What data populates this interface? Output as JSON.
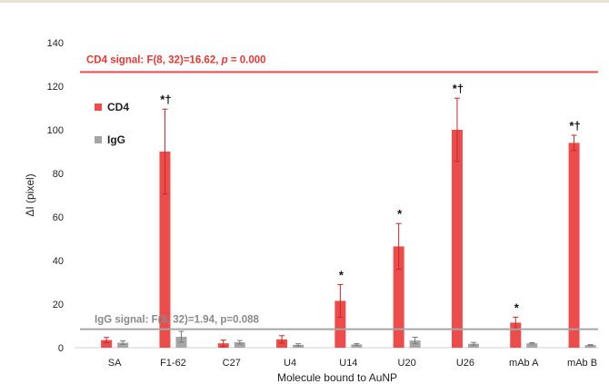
{
  "chart_data": {
    "type": "bar",
    "xlabel": "Molecule bound to AuNP",
    "ylabel": "ΔI (pixel)",
    "ylim": [
      0,
      140
    ],
    "yticks": [
      0,
      20,
      40,
      60,
      80,
      100,
      120,
      140
    ],
    "grid": false,
    "legend_position": "top-left",
    "categories": [
      "SA",
      "F1-62",
      "C27",
      "U4",
      "U14",
      "U20",
      "U26",
      "mAb A",
      "mAb B"
    ],
    "series": [
      {
        "name": "CD4",
        "color": "#ee4b4b",
        "values": [
          3.5,
          90,
          2,
          3.8,
          21.5,
          46.5,
          100,
          11.5,
          94
        ],
        "errors": [
          1.2,
          19.5,
          1.5,
          1.7,
          7.5,
          10.5,
          14.5,
          2.5,
          3.5
        ]
      },
      {
        "name": "IgG",
        "color": "#a6a6a6",
        "values": [
          2.3,
          5,
          2.5,
          1.3,
          1.5,
          3.3,
          1.8,
          2,
          1.2
        ],
        "errors": [
          0.8,
          2.5,
          0.8,
          0.5,
          0.4,
          1.5,
          0.6,
          0.3,
          0.2
        ]
      }
    ],
    "markers": [
      "",
      "*†",
      "",
      "",
      "*",
      "*",
      "*†",
      "*",
      "*†"
    ],
    "reference_lines": [
      {
        "label_parts": [
          "CD4 signal: F(8, 32)=16.62, ",
          "p",
          " = 0.000"
        ],
        "value": 126.5,
        "color": "#ee4b4b"
      },
      {
        "label_parts": [
          "IgG signal: F(8, 32)=1.94, p=0.088"
        ],
        "value": 8.5,
        "color": "#a6a6a6"
      }
    ]
  }
}
